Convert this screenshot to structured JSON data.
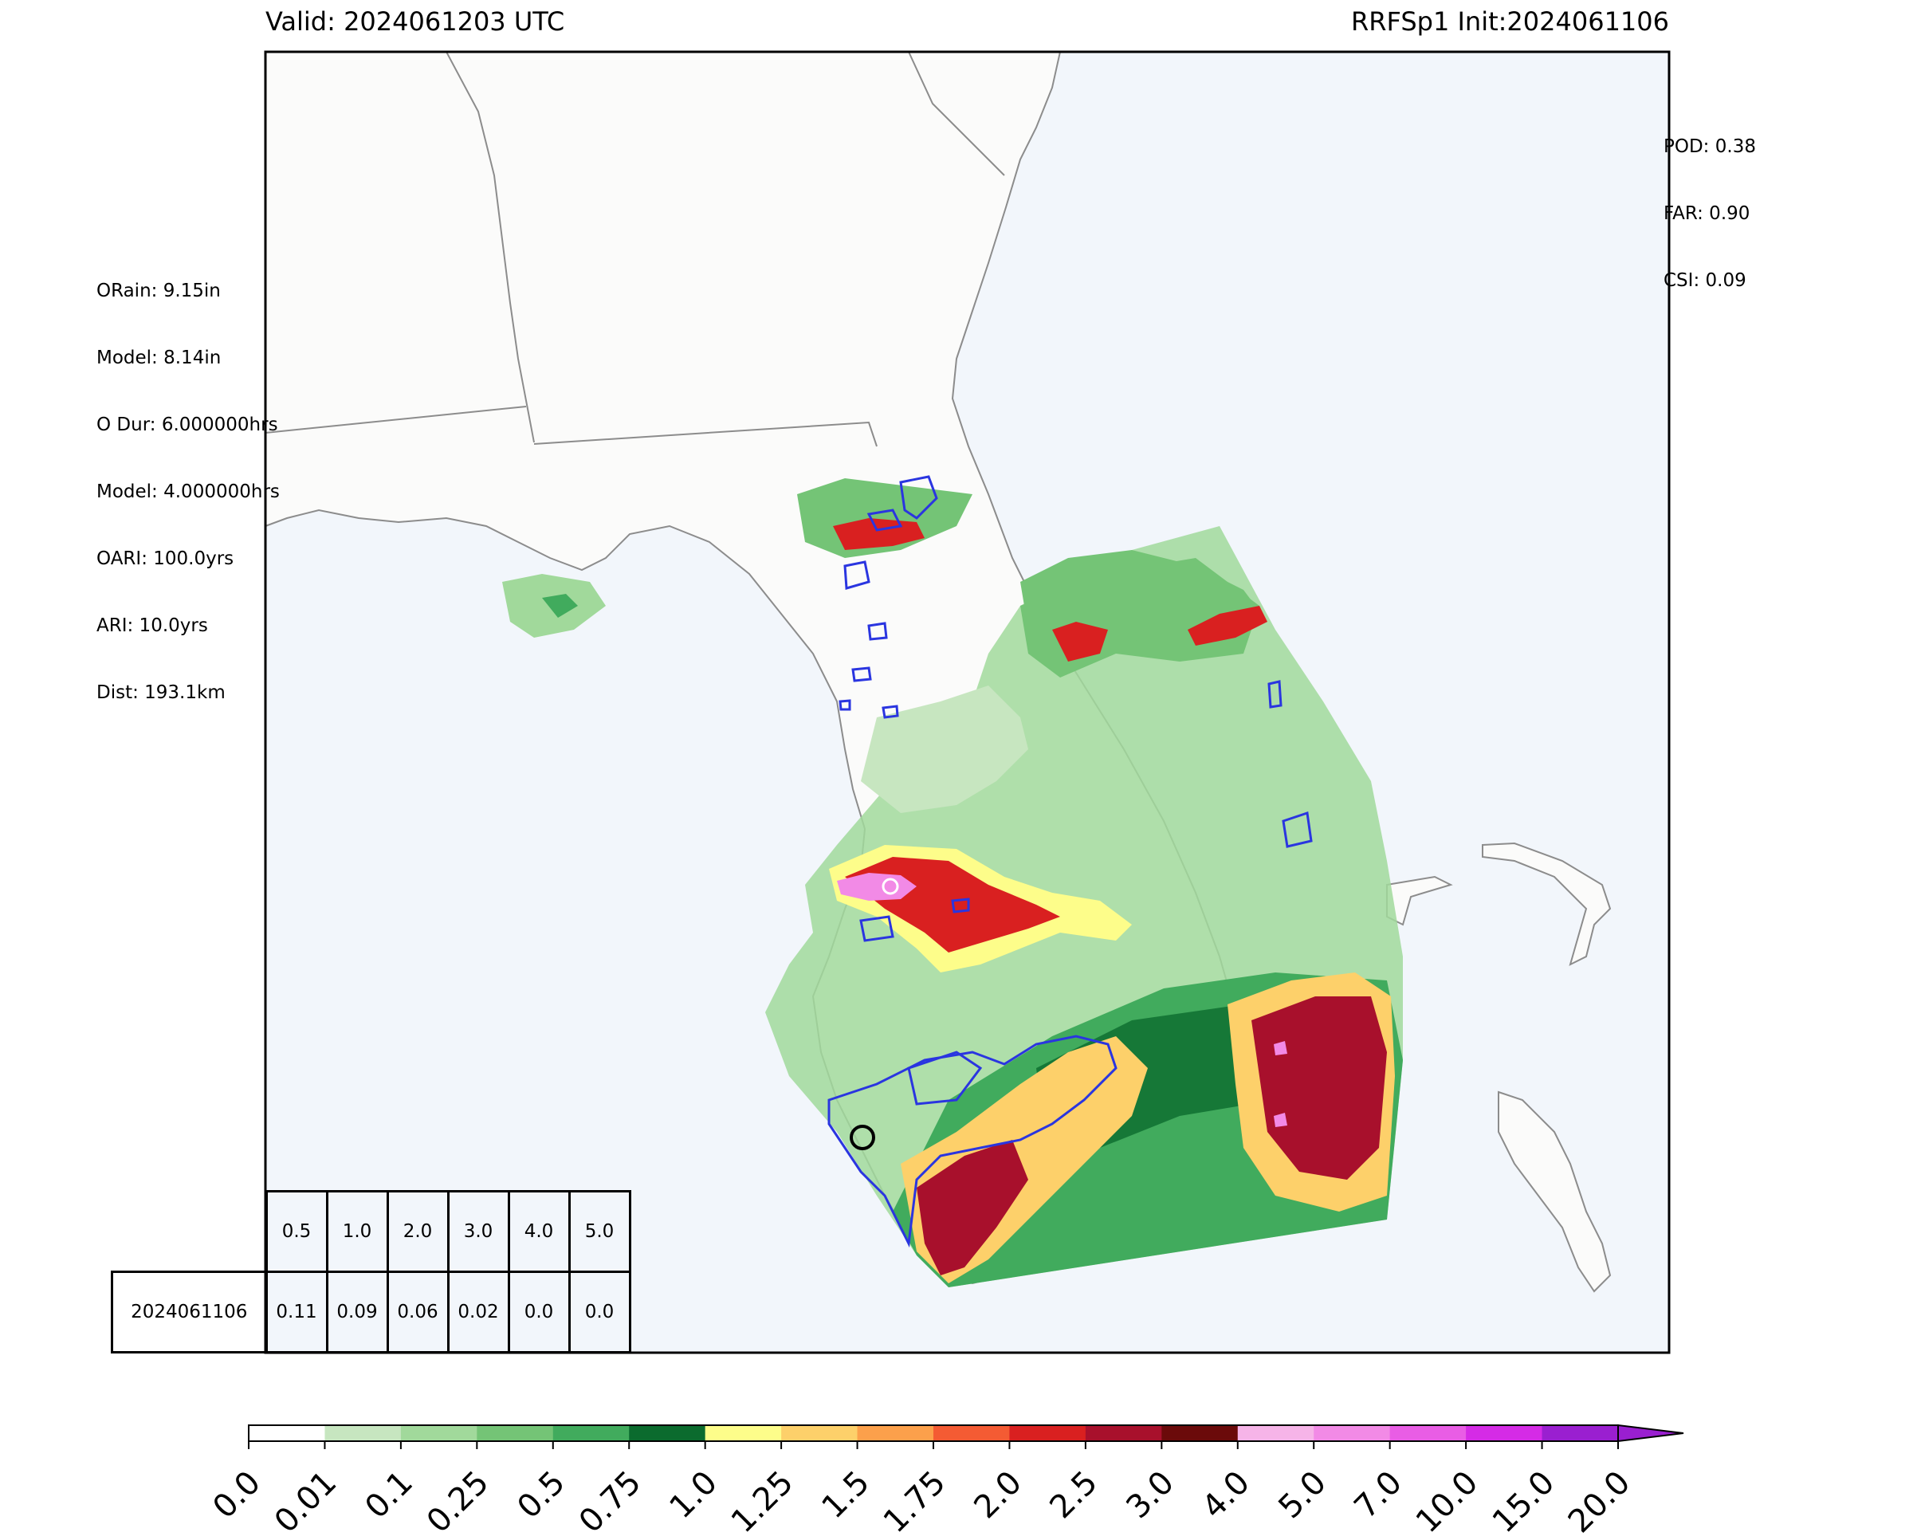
{
  "header": {
    "valid": "Valid: 2024061203 UTC",
    "init": "RRFSp1 Init:2024061106"
  },
  "scores": {
    "pod": "POD: 0.38",
    "far": "FAR: 0.90",
    "csi": "CSI: 0.09"
  },
  "event_info": [
    "ORain: 9.15in",
    "Model: 8.14in",
    "O Dur: 6.000000hrs",
    "Model: 4.000000hrs",
    "OARI: 100.0yrs",
    "ARI: 10.0yrs",
    "Dist: 193.1km"
  ],
  "threshold_table": {
    "thresholds": [
      "0.5",
      "1.0",
      "2.0",
      "3.0",
      "4.0",
      "5.0"
    ],
    "row_label": "2024061106",
    "values": [
      "0.11",
      "0.09",
      "0.06",
      "0.02",
      "0.0",
      "0.0"
    ]
  },
  "colorbar": {
    "ticks": [
      "0.0",
      "0.01",
      "0.1",
      "0.25",
      "0.5",
      "0.75",
      "1.0",
      "1.25",
      "1.5",
      "1.75",
      "2.0",
      "2.5",
      "3.0",
      "4.0",
      "5.0",
      "7.0",
      "10.0",
      "15.0",
      "20.0"
    ],
    "colors": [
      "#ffffff",
      "#c7e6c0",
      "#a1d99b",
      "#74c476",
      "#41ab5d",
      "#0b6b2e",
      "#fdfd8a",
      "#fdd06a",
      "#fca04b",
      "#f45b33",
      "#d92020",
      "#a8102c",
      "#6b0a0a",
      "#f6b4e8",
      "#f28ae6",
      "#e95de5",
      "#d52be6",
      "#9a1fd0"
    ]
  },
  "map_colors": {
    "ocean": "#f2f6fb",
    "land": "#fbfbfa",
    "border": "#8c8c8c",
    "contour": "#2a35e0"
  }
}
